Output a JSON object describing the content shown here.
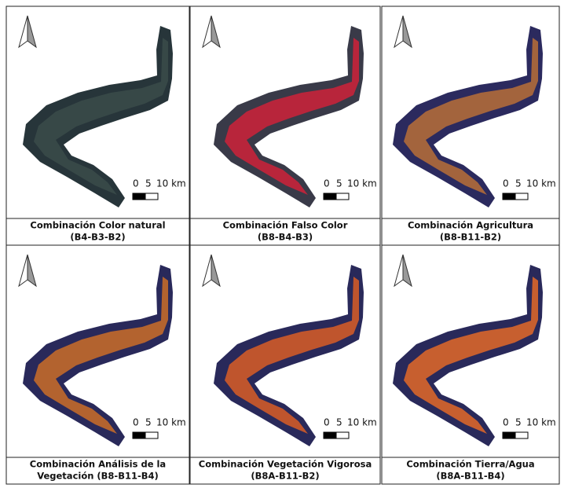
{
  "panels": [
    {
      "title_lines": [
        "Combinación Color natural",
        "(B4-B3-B2)"
      ],
      "scale_labels": [
        "0",
        "5",
        "10 km"
      ]
    },
    {
      "title_lines": [
        "Combinación Falso Color",
        "(B8-B4-B3)"
      ],
      "scale_labels": [
        "0",
        "5",
        "10 km"
      ]
    },
    {
      "title_lines": [
        "Combinación Agricultura",
        "(B8-B11-B2)"
      ],
      "scale_labels": [
        "0",
        "5",
        "10 km"
      ]
    },
    {
      "title_lines": [
        "Combinación Análisis de la",
        "Vegetación (B8-B11-B4)"
      ],
      "scale_labels": [
        "0",
        "5",
        "10 km"
      ]
    },
    {
      "title_lines": [
        "Combinación Vegetación Vigorosa",
        "(B8A-B11-B2)"
      ],
      "scale_labels": [
        "0",
        "5",
        "10 km"
      ]
    },
    {
      "title_lines": [
        "Combinación Tierra/Agua",
        "(B8A-B11-B4)"
      ],
      "scale_labels": [
        "0",
        "5",
        "10 km"
      ]
    }
  ]
}
